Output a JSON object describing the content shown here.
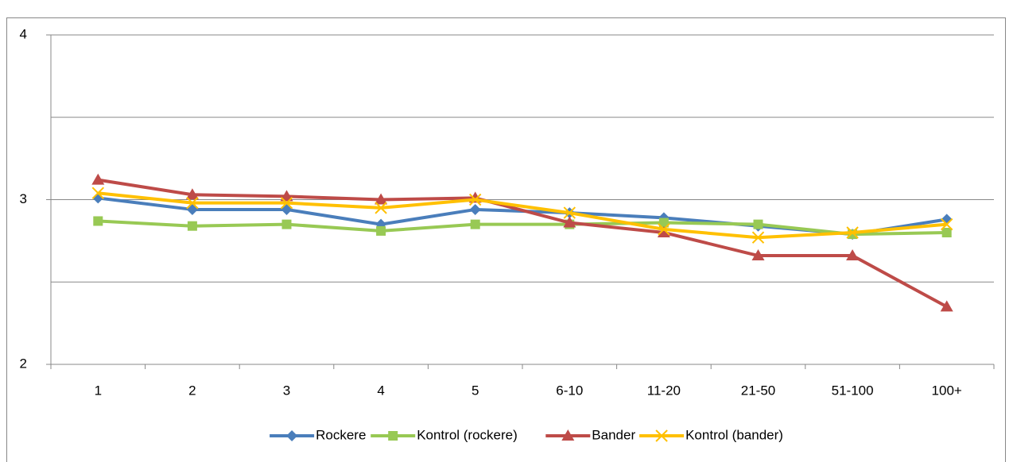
{
  "chart_data": {
    "type": "line",
    "categories": [
      "1",
      "2",
      "3",
      "4",
      "5",
      "6-10",
      "11-20",
      "21-50",
      "51-100",
      "100+"
    ],
    "series": [
      {
        "name": "Rockere",
        "color": "#4a7ebb",
        "marker": "diamond",
        "values": [
          3.01,
          2.94,
          2.94,
          2.85,
          2.94,
          2.92,
          2.89,
          2.84,
          2.79,
          2.88
        ]
      },
      {
        "name": "Kontrol (rockere)",
        "color": "#98c954",
        "marker": "square",
        "values": [
          2.87,
          2.84,
          2.85,
          2.81,
          2.85,
          2.85,
          2.86,
          2.85,
          2.79,
          2.8
        ]
      },
      {
        "name": "Bander",
        "color": "#be4b48",
        "marker": "triangle",
        "values": [
          3.12,
          3.03,
          3.02,
          3.0,
          3.01,
          2.86,
          2.8,
          2.66,
          2.66,
          2.35
        ]
      },
      {
        "name": "Kontrol (bander)",
        "color": "#ffc000",
        "marker": "x",
        "values": [
          3.04,
          2.98,
          2.98,
          2.95,
          3.0,
          2.92,
          2.82,
          2.77,
          2.8,
          2.85
        ]
      }
    ],
    "ylim": [
      2,
      4
    ],
    "yticks": [
      2,
      3,
      4
    ],
    "grid_lines": [
      2.5,
      3,
      3.5,
      4
    ],
    "legend": "bottom"
  }
}
